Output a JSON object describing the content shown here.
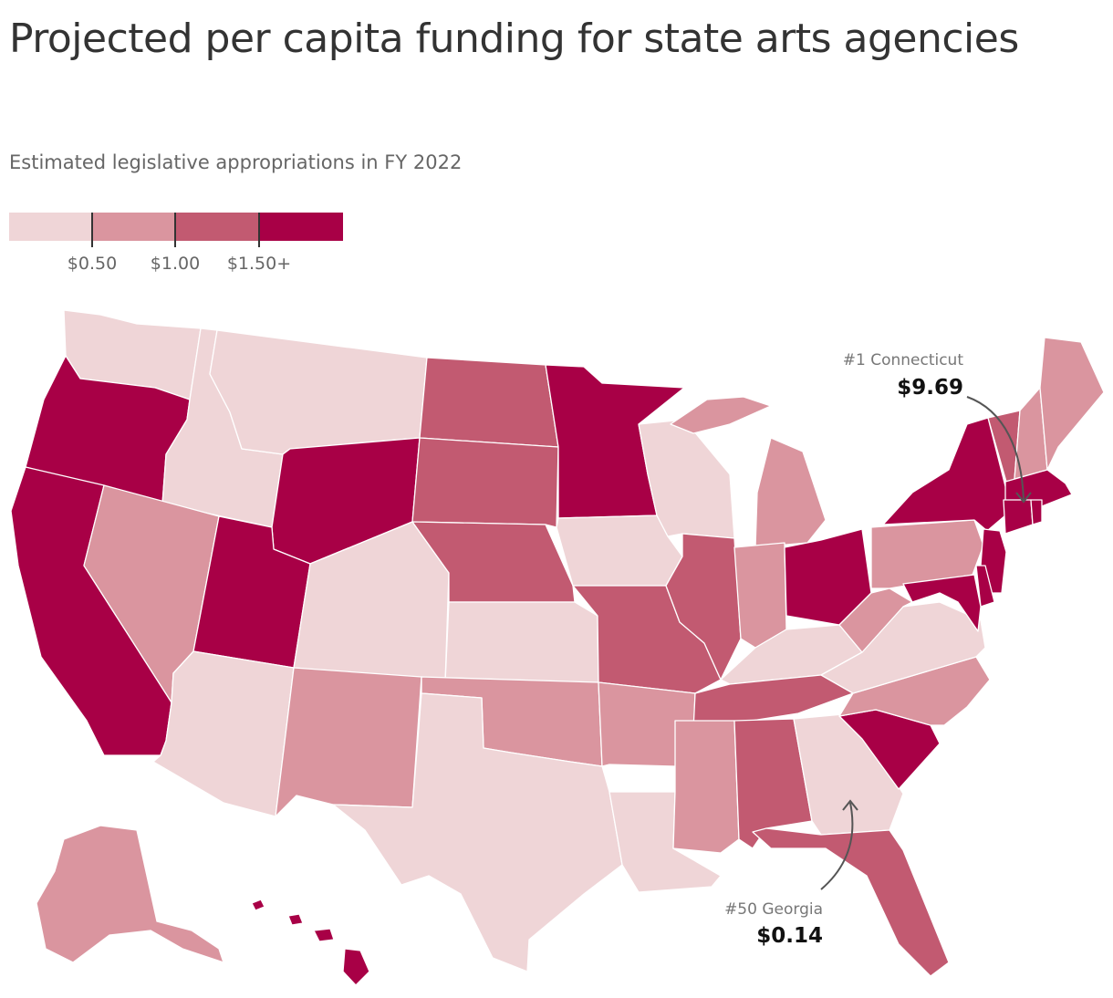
{
  "header": {
    "title": "Projected per capita funding for state arts agencies",
    "subtitle": "Estimated legislative appropriations in FY 2022"
  },
  "legend": {
    "bins": [
      "#efd5d7",
      "#da959f",
      "#c25a71",
      "#a80046"
    ],
    "ticks": [
      "$0.50",
      "$1.00",
      "$1.50+"
    ]
  },
  "states": {
    "WA": 0,
    "OR": 3,
    "CA": 3,
    "ID": 0,
    "NV": 1,
    "MT": 0,
    "WY": 3,
    "UT": 3,
    "AZ": 0,
    "CO": 0,
    "NM": 1,
    "ND": 2,
    "SD": 2,
    "NE": 2,
    "KS": 0,
    "OK": 1,
    "TX": 0,
    "MN": 3,
    "IA": 0,
    "MO": 2,
    "AR": 1,
    "LA": 0,
    "WI": 0,
    "IL": 2,
    "MS": 1,
    "MI": 1,
    "IN": 1,
    "KY": 0,
    "TN": 2,
    "AL": 2,
    "OH": 3,
    "GA": 0,
    "FL": 2,
    "SC": 3,
    "NC": 1,
    "VA": 0,
    "WV": 1,
    "PA": 1,
    "NY": 3,
    "VT": 2,
    "NH": 1,
    "ME": 1,
    "MA": 3,
    "CT": 3,
    "RI": 3,
    "NJ": 3,
    "DE": 3,
    "MD": 3,
    "AK": 1,
    "HI": 3
  },
  "callouts": [
    {
      "rank": "#1  Connecticut",
      "value": "$9.69"
    },
    {
      "rank": "#50  Georgia",
      "value": "$0.14"
    }
  ]
}
